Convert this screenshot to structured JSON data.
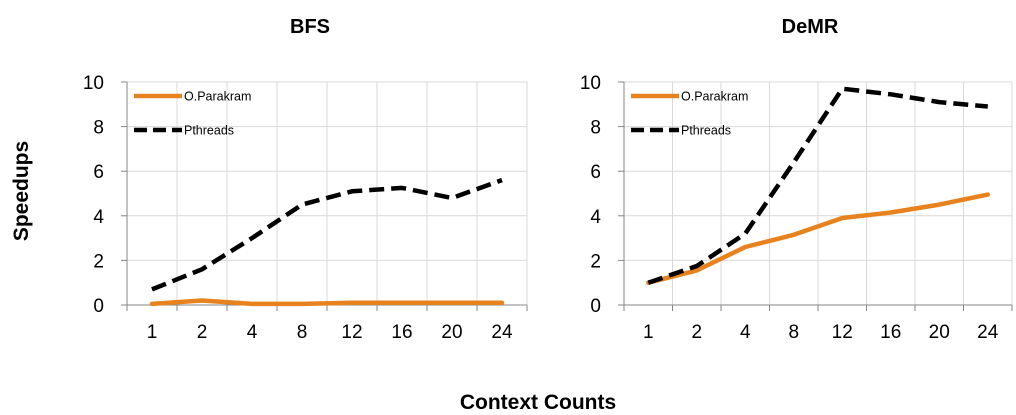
{
  "ylabel": "Speedups",
  "xlabel": "Context Counts",
  "chart_data": [
    {
      "type": "line",
      "title": "BFS",
      "categories": [
        "1",
        "2",
        "4",
        "8",
        "12",
        "16",
        "20",
        "24"
      ],
      "ylim": [
        0,
        10
      ],
      "yticks": [
        "0",
        "2",
        "4",
        "6",
        "8",
        "10"
      ],
      "grid": true,
      "legend": "top-left",
      "series": [
        {
          "name": "O.Parakram",
          "color": "#E8821E",
          "dash": "solid",
          "values": [
            0.05,
            0.2,
            0.05,
            0.05,
            0.1,
            0.1,
            0.1,
            0.1
          ]
        },
        {
          "name": "Pthreads",
          "color": "#000000",
          "dash": "dashed",
          "values": [
            0.7,
            1.6,
            3.0,
            4.5,
            5.1,
            5.25,
            4.8,
            5.6
          ]
        }
      ]
    },
    {
      "type": "line",
      "title": "DeMR",
      "categories": [
        "1",
        "2",
        "4",
        "8",
        "12",
        "16",
        "20",
        "24"
      ],
      "ylim": [
        0,
        10
      ],
      "yticks": [
        "0",
        "2",
        "4",
        "6",
        "8",
        "10"
      ],
      "grid": true,
      "legend": "top-left",
      "series": [
        {
          "name": "O.Parakram",
          "color": "#E8821E",
          "dash": "solid",
          "values": [
            1.0,
            1.55,
            2.6,
            3.15,
            3.9,
            4.15,
            4.5,
            4.95
          ]
        },
        {
          "name": "Pthreads",
          "color": "#000000",
          "dash": "dashed",
          "values": [
            1.0,
            1.75,
            3.2,
            6.4,
            9.7,
            9.45,
            9.1,
            8.9
          ]
        }
      ]
    }
  ]
}
